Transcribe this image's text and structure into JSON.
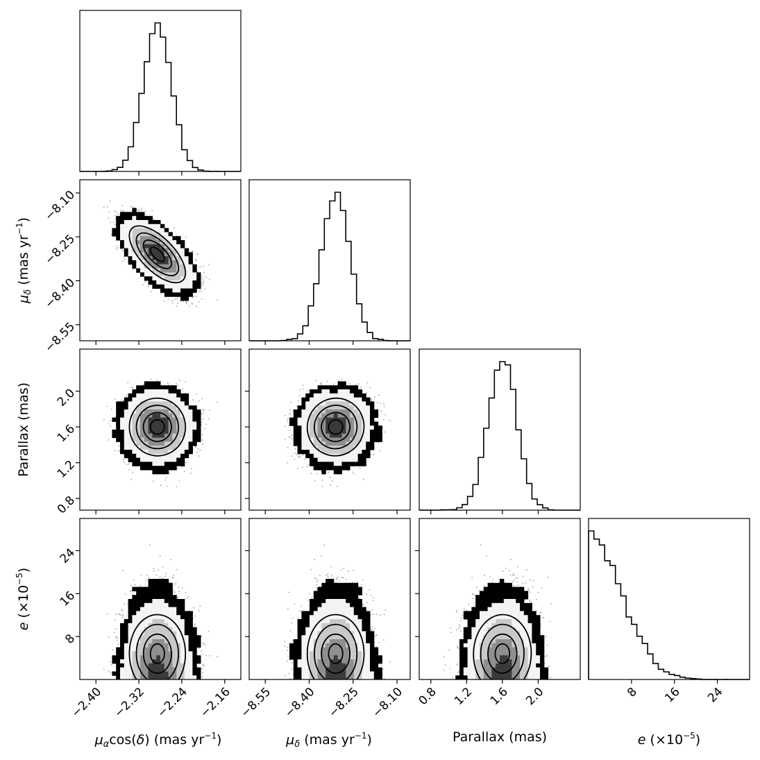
{
  "chart_data": {
    "type": "corner",
    "parameters": [
      {
        "key": "mu_alpha",
        "range": [
          -2.43,
          -2.13
        ],
        "ticks": [
          -2.4,
          -2.32,
          -2.24,
          -2.16
        ],
        "tick_labels": [
          "−2.40",
          "−2.32",
          "−2.24",
          "−2.16"
        ],
        "mean": -2.285,
        "sd": 0.026
      },
      {
        "key": "mu_delta",
        "range": [
          -8.605,
          -8.055
        ],
        "ticks": [
          -8.55,
          -8.4,
          -8.25,
          -8.1
        ],
        "tick_labels": [
          "−8.55",
          "−8.40",
          "−8.25",
          "−8.10"
        ],
        "mean": -8.31,
        "sd": 0.048
      },
      {
        "key": "parallax",
        "range": [
          0.67,
          2.47
        ],
        "ticks": [
          0.8,
          1.2,
          1.6,
          2.0
        ],
        "tick_labels": [
          "0.8",
          "1.2",
          "1.6",
          "2.0"
        ],
        "mean": 1.6,
        "sd": 0.16
      },
      {
        "key": "ecc",
        "range": [
          0,
          30
        ],
        "ticks": [
          8,
          16,
          24
        ],
        "tick_labels": [
          "8",
          "16",
          "24"
        ],
        "scale_exponent": -5
      }
    ],
    "xlabels": {
      "mu_alpha": {
        "mu": "μ",
        "sub": "α",
        "mid": "cos(",
        "delta": "δ",
        "post": ") (mas yr",
        "sup": "−1",
        "end": ")"
      },
      "mu_delta": {
        "mu": "μ",
        "sub": "δ",
        "post": " (mas yr",
        "sup": "−1",
        "end": ")"
      },
      "parallax": {
        "text": "Parallax (mas)"
      },
      "ecc": {
        "e": "e",
        "post": " (×10",
        "sup": "−5",
        "end": ")"
      }
    },
    "ylabels": {
      "mu_delta": {
        "mu": "μ",
        "sub": "δ",
        "post": " (mas yr",
        "sup": "−1",
        "end": ")"
      },
      "parallax": {
        "text": "Parallax (mas)"
      },
      "ecc": {
        "e": "e",
        "post": " (×10",
        "sup": "−5",
        "end": ")"
      }
    },
    "correlations": {
      "mu_delta|mu_alpha": -0.65
    },
    "ecc_distribution": "half-normal, sigma ≈ 6",
    "marginals": "step histograms, 30 bins",
    "joints": "2D histogram density with contours at 0.5, 1, 1.5, 2 sigma",
    "grid": false
  }
}
